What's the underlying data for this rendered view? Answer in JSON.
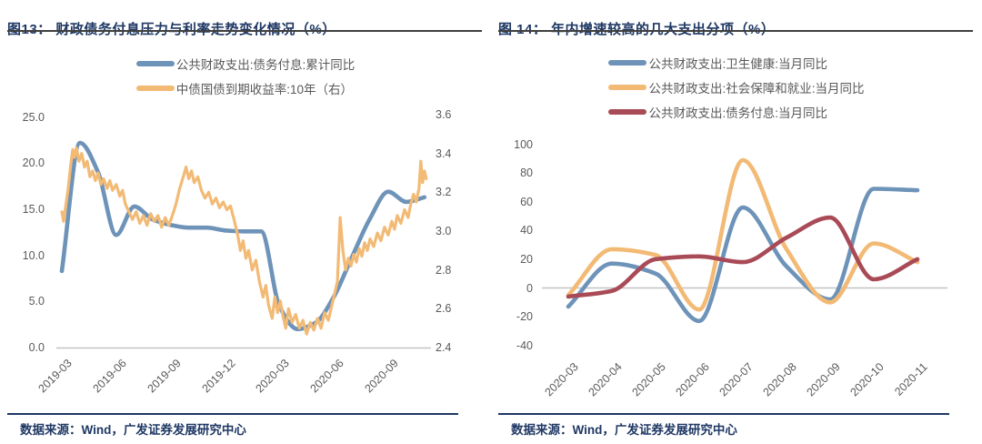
{
  "theme": {
    "background": "#ffffff",
    "title_color": "#1f3864",
    "title_rule_color": "#3f3f3f",
    "source_color": "#1f3864",
    "source_rule_color": "#1f3864",
    "axis_text_color": "#595959",
    "legend_text_color": "#595959",
    "axis_line_color": "#c3c3c3",
    "series_blue": "#6e93b9",
    "series_orange": "#f2ba75",
    "series_red": "#a94a57"
  },
  "chart_data": [
    {
      "id": "fig13",
      "type": "line",
      "title": "图13： 财政债务付息压力与利率走势变化情况（%）",
      "source": "数据来源：Wind，广发证券发展研究中心",
      "grid": false,
      "legend_position": "top",
      "x_unit": "months from 2019-03",
      "x_tick_months": [
        0,
        3,
        6,
        9,
        12,
        15,
        18
      ],
      "x_tick_labels": [
        "2019-03",
        "2019-06",
        "2019-09",
        "2019-12",
        "2020-03",
        "2020-06",
        "2020-09"
      ],
      "left_axis": {
        "min": 0,
        "max": 25,
        "ticks": [
          25,
          20,
          15,
          10,
          5,
          0
        ],
        "tick_labels": [
          "25.0",
          "20.0",
          "15.0",
          "10.0",
          "5.0",
          "0.0"
        ]
      },
      "right_axis": {
        "min": 2.4,
        "max": 3.6,
        "ticks": [
          3.6,
          3.4,
          3.2,
          3.0,
          2.8,
          2.6,
          2.4
        ],
        "tick_labels": [
          "3.6",
          "3.4",
          "3.2",
          "3.0",
          "2.8",
          "2.6",
          "2.4"
        ]
      },
      "series": [
        {
          "name": "公共财政支出:债务付息:累计同比",
          "color": "#6e93b9",
          "axis": "left",
          "line": "smooth",
          "width": 4.6,
          "points": [
            [
              0,
              8.3
            ],
            [
              1,
              22.2
            ],
            [
              2,
              19.0
            ],
            [
              3,
              12.2
            ],
            [
              4,
              15.3
            ],
            [
              5,
              13.9
            ],
            [
              6,
              13.3
            ],
            [
              7,
              13.0
            ],
            [
              8,
              13.0
            ],
            [
              9,
              12.7
            ],
            [
              10,
              12.6
            ],
            [
              11,
              12.6
            ],
            [
              12,
              4.5
            ],
            [
              13,
              2.0
            ],
            [
              14,
              2.7
            ],
            [
              15,
              5.5
            ],
            [
              16,
              9.8
            ],
            [
              17,
              14.0
            ],
            [
              18,
              16.9
            ],
            [
              19,
              15.8
            ],
            [
              20,
              16.3
            ]
          ]
        },
        {
          "name": "中债国债到期收益率:10年（右）",
          "color": "#f2ba75",
          "axis": "right",
          "line": "jagged",
          "width": 3.2,
          "points": [
            [
              0,
              3.1
            ],
            [
              0.1,
              3.05
            ],
            [
              0.2,
              3.12
            ],
            [
              0.35,
              3.22
            ],
            [
              0.5,
              3.35
            ],
            [
              0.6,
              3.42
            ],
            [
              0.7,
              3.38
            ],
            [
              0.8,
              3.43
            ],
            [
              0.95,
              3.36
            ],
            [
              1.1,
              3.4
            ],
            [
              1.25,
              3.33
            ],
            [
              1.4,
              3.36
            ],
            [
              1.55,
              3.28
            ],
            [
              1.7,
              3.31
            ],
            [
              1.85,
              3.26
            ],
            [
              2.0,
              3.3
            ],
            [
              2.15,
              3.24
            ],
            [
              2.3,
              3.27
            ],
            [
              2.5,
              3.22
            ],
            [
              2.65,
              3.26
            ],
            [
              2.8,
              3.21
            ],
            [
              3.0,
              3.24
            ],
            [
              3.2,
              3.18
            ],
            [
              3.35,
              3.21
            ],
            [
              3.5,
              3.14
            ],
            [
              3.7,
              3.1
            ],
            [
              3.9,
              3.06
            ],
            [
              4.1,
              3.1
            ],
            [
              4.3,
              3.04
            ],
            [
              4.5,
              3.08
            ],
            [
              4.7,
              3.03
            ],
            [
              4.9,
              3.09
            ],
            [
              5.1,
              3.05
            ],
            [
              5.3,
              3.08
            ],
            [
              5.5,
              3.02
            ],
            [
              5.7,
              3.07
            ],
            [
              5.9,
              3.03
            ],
            [
              6.1,
              3.08
            ],
            [
              6.3,
              3.14
            ],
            [
              6.5,
              3.22
            ],
            [
              6.7,
              3.28
            ],
            [
              6.85,
              3.33
            ],
            [
              7.0,
              3.27
            ],
            [
              7.15,
              3.31
            ],
            [
              7.3,
              3.25
            ],
            [
              7.5,
              3.28
            ],
            [
              7.7,
              3.21
            ],
            [
              7.9,
              3.17
            ],
            [
              8.1,
              3.2
            ],
            [
              8.3,
              3.14
            ],
            [
              8.5,
              3.17
            ],
            [
              8.7,
              3.12
            ],
            [
              8.9,
              3.15
            ],
            [
              9.1,
              3.11
            ],
            [
              9.3,
              3.13
            ],
            [
              9.5,
              3.06
            ],
            [
              9.7,
              2.98
            ],
            [
              9.85,
              2.9
            ],
            [
              10.0,
              2.95
            ],
            [
              10.15,
              2.86
            ],
            [
              10.3,
              2.9
            ],
            [
              10.5,
              2.8
            ],
            [
              10.7,
              2.85
            ],
            [
              10.9,
              2.74
            ],
            [
              11.1,
              2.66
            ],
            [
              11.25,
              2.72
            ],
            [
              11.4,
              2.62
            ],
            [
              11.6,
              2.55
            ],
            [
              11.75,
              2.66
            ],
            [
              11.9,
              2.58
            ],
            [
              12.05,
              2.64
            ],
            [
              12.2,
              2.56
            ],
            [
              12.35,
              2.5
            ],
            [
              12.5,
              2.6
            ],
            [
              12.7,
              2.53
            ],
            [
              12.9,
              2.57
            ],
            [
              13.1,
              2.5
            ],
            [
              13.3,
              2.54
            ],
            [
              13.5,
              2.47
            ],
            [
              13.7,
              2.53
            ],
            [
              13.9,
              2.49
            ],
            [
              14.1,
              2.55
            ],
            [
              14.3,
              2.5
            ],
            [
              14.5,
              2.58
            ],
            [
              14.7,
              2.54
            ],
            [
              14.9,
              2.62
            ],
            [
              15.05,
              2.68
            ],
            [
              15.2,
              2.74
            ],
            [
              15.35,
              3.07
            ],
            [
              15.5,
              2.9
            ],
            [
              15.65,
              2.8
            ],
            [
              15.8,
              2.86
            ],
            [
              15.95,
              2.82
            ],
            [
              16.1,
              2.88
            ],
            [
              16.25,
              2.84
            ],
            [
              16.4,
              2.91
            ],
            [
              16.55,
              2.87
            ],
            [
              16.7,
              2.94
            ],
            [
              16.85,
              2.9
            ],
            [
              17.0,
              2.96
            ],
            [
              17.2,
              2.92
            ],
            [
              17.4,
              2.99
            ],
            [
              17.6,
              2.95
            ],
            [
              17.8,
              3.02
            ],
            [
              18.0,
              2.98
            ],
            [
              18.2,
              3.05
            ],
            [
              18.35,
              3.01
            ],
            [
              18.5,
              3.08
            ],
            [
              18.7,
              3.04
            ],
            [
              18.9,
              3.11
            ],
            [
              19.1,
              3.07
            ],
            [
              19.25,
              3.14
            ],
            [
              19.4,
              3.19
            ],
            [
              19.55,
              3.15
            ],
            [
              19.7,
              3.22
            ],
            [
              19.8,
              3.36
            ],
            [
              19.9,
              3.25
            ],
            [
              20.0,
              3.31
            ],
            [
              20.1,
              3.27
            ]
          ]
        }
      ]
    },
    {
      "id": "fig14",
      "type": "line",
      "title": "图 14： 年内增速较高的几大支出分项（%）",
      "source": "数据来源：Wind，广发证券发展研究中心",
      "grid": false,
      "legend_position": "top",
      "categories": [
        "2020-03",
        "2020-04",
        "2020-05",
        "2020-06",
        "2020-07",
        "2020-08",
        "2020-09",
        "2020-10",
        "2020-11"
      ],
      "axis": {
        "min": -40,
        "max": 100,
        "ticks": [
          100,
          80,
          60,
          40,
          20,
          0,
          -20,
          -40
        ],
        "tick_labels": [
          "100",
          "80",
          "60",
          "40",
          "20",
          "0",
          "-20",
          "-40"
        ]
      },
      "series": [
        {
          "name": "公共财政支出:卫生健康:当月同比",
          "color": "#6e93b9",
          "line": "smooth",
          "width": 4.6,
          "values": [
            -13,
            17,
            10,
            -23,
            56,
            15,
            -8,
            69,
            68
          ]
        },
        {
          "name": "公共财政支出:社会保障和就业:当月同比",
          "color": "#f2ba75",
          "line": "smooth",
          "width": 4.6,
          "values": [
            -5,
            27,
            23,
            -15,
            89,
            27,
            -10,
            31,
            18
          ]
        },
        {
          "name": "公共财政支出:债务付息:当月同比",
          "color": "#a94a57",
          "line": "smooth",
          "width": 4.6,
          "values": [
            -6,
            -2,
            20,
            22,
            18,
            35,
            49,
            6,
            20
          ]
        }
      ]
    }
  ]
}
